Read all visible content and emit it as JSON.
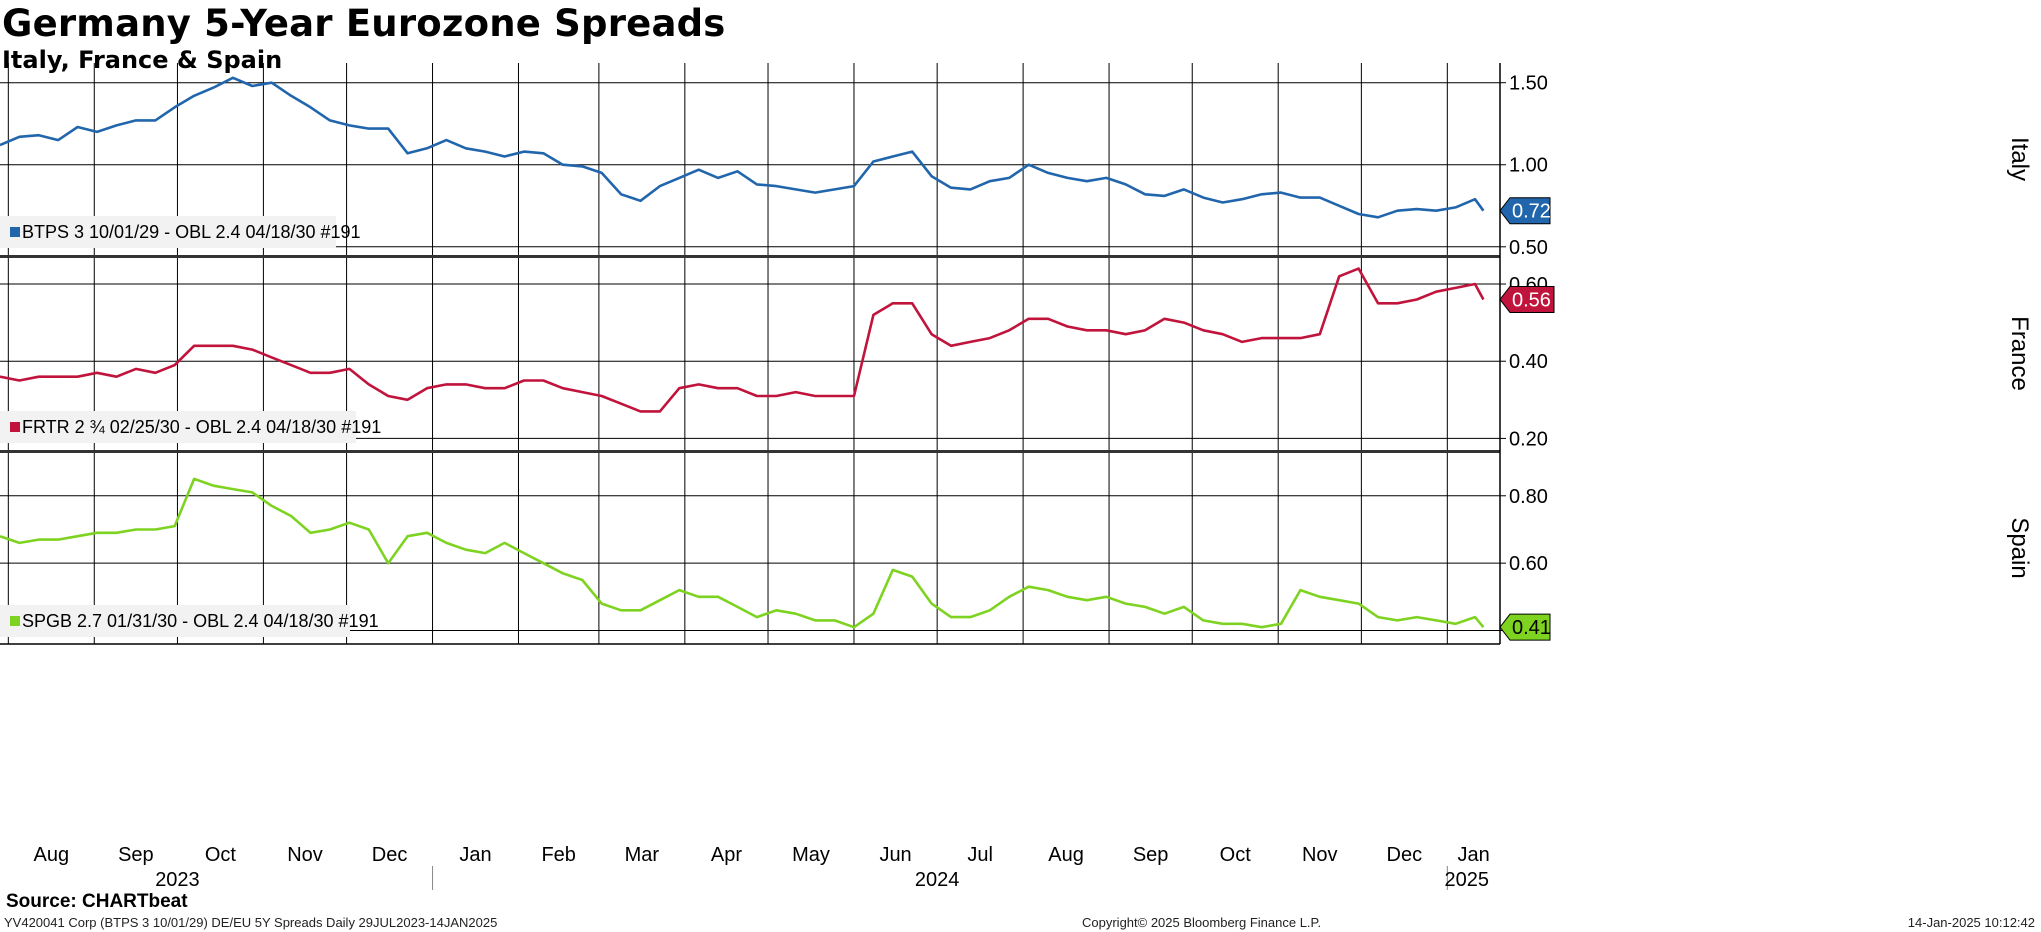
{
  "header": {
    "title": "Germany 5-Year Eurozone Spreads",
    "subtitle": "Italy, France & Spain"
  },
  "footer": {
    "source": "Source: CHARTbeat",
    "left": "YV420041 Corp (BTPS 3 10/01/29) DE/EU 5Y Spreads  Daily 29JUL2023-14JAN2025",
    "center": "Copyright© 2025 Bloomberg Finance L.P.",
    "right": "14-Jan-2025 10:12:42"
  },
  "colors": {
    "italy": "#2166ac",
    "france": "#c0143c",
    "spain": "#7ed321",
    "grid": "#000000"
  },
  "chart_data": [
    {
      "type": "line",
      "panel": "top",
      "axis_title": "Italy",
      "ylim": [
        0.45,
        1.62
      ],
      "yticks": [
        0.5,
        1.0,
        1.5
      ],
      "ytick_labels": [
        "0.50",
        "1.00",
        "1.50"
      ],
      "last_value_label": "0.72",
      "grid": true,
      "series": [
        {
          "name": "BTPS 3 10/01/29 - OBL 2.4 04/18/30 #191",
          "x": [
            "2023-07-29",
            "2023-08-05",
            "2023-08-12",
            "2023-08-19",
            "2023-08-26",
            "2023-09-02",
            "2023-09-09",
            "2023-09-16",
            "2023-09-23",
            "2023-09-30",
            "2023-10-07",
            "2023-10-14",
            "2023-10-21",
            "2023-10-28",
            "2023-11-04",
            "2023-11-11",
            "2023-11-18",
            "2023-11-25",
            "2023-12-02",
            "2023-12-09",
            "2023-12-16",
            "2023-12-23",
            "2023-12-30",
            "2024-01-06",
            "2024-01-13",
            "2024-01-20",
            "2024-01-27",
            "2024-02-03",
            "2024-02-10",
            "2024-02-17",
            "2024-02-24",
            "2024-03-02",
            "2024-03-09",
            "2024-03-16",
            "2024-03-23",
            "2024-03-30",
            "2024-04-06",
            "2024-04-13",
            "2024-04-20",
            "2024-04-27",
            "2024-05-04",
            "2024-05-11",
            "2024-05-18",
            "2024-05-25",
            "2024-06-01",
            "2024-06-08",
            "2024-06-15",
            "2024-06-22",
            "2024-06-29",
            "2024-07-06",
            "2024-07-13",
            "2024-07-20",
            "2024-07-27",
            "2024-08-03",
            "2024-08-10",
            "2024-08-17",
            "2024-08-24",
            "2024-08-31",
            "2024-09-07",
            "2024-09-14",
            "2024-09-21",
            "2024-09-28",
            "2024-10-05",
            "2024-10-12",
            "2024-10-19",
            "2024-10-26",
            "2024-11-02",
            "2024-11-09",
            "2024-11-16",
            "2024-11-23",
            "2024-11-30",
            "2024-12-07",
            "2024-12-14",
            "2024-12-21",
            "2024-12-28",
            "2025-01-04",
            "2025-01-11",
            "2025-01-14"
          ],
          "values": [
            1.12,
            1.17,
            1.18,
            1.15,
            1.23,
            1.2,
            1.24,
            1.27,
            1.27,
            1.35,
            1.42,
            1.47,
            1.53,
            1.48,
            1.5,
            1.42,
            1.35,
            1.27,
            1.24,
            1.22,
            1.22,
            1.07,
            1.1,
            1.15,
            1.1,
            1.08,
            1.05,
            1.08,
            1.07,
            1.0,
            0.99,
            0.95,
            0.82,
            0.78,
            0.87,
            0.92,
            0.97,
            0.92,
            0.96,
            0.88,
            0.87,
            0.85,
            0.83,
            0.85,
            0.87,
            1.02,
            1.05,
            1.08,
            0.93,
            0.86,
            0.85,
            0.9,
            0.92,
            1.0,
            0.95,
            0.92,
            0.9,
            0.92,
            0.88,
            0.82,
            0.81,
            0.85,
            0.8,
            0.77,
            0.79,
            0.82,
            0.83,
            0.8,
            0.8,
            0.75,
            0.7,
            0.68,
            0.72,
            0.73,
            0.72,
            0.74,
            0.79,
            0.72
          ]
        }
      ]
    },
    {
      "type": "line",
      "panel": "middle",
      "axis_title": "France",
      "ylim": [
        0.17,
        0.67
      ],
      "yticks": [
        0.2,
        0.4,
        0.6
      ],
      "ytick_labels": [
        "0.20",
        "0.40",
        "0.60"
      ],
      "last_value_label": "0.56",
      "grid": true,
      "series": [
        {
          "name": "FRTR 2 ¾ 02/25/30 - OBL 2.4 04/18/30 #191",
          "x": [
            "2023-07-29",
            "2023-08-05",
            "2023-08-12",
            "2023-08-19",
            "2023-08-26",
            "2023-09-02",
            "2023-09-09",
            "2023-09-16",
            "2023-09-23",
            "2023-09-30",
            "2023-10-07",
            "2023-10-14",
            "2023-10-21",
            "2023-10-28",
            "2023-11-04",
            "2023-11-11",
            "2023-11-18",
            "2023-11-25",
            "2023-12-02",
            "2023-12-09",
            "2023-12-16",
            "2023-12-23",
            "2023-12-30",
            "2024-01-06",
            "2024-01-13",
            "2024-01-20",
            "2024-01-27",
            "2024-02-03",
            "2024-02-10",
            "2024-02-17",
            "2024-02-24",
            "2024-03-02",
            "2024-03-09",
            "2024-03-16",
            "2024-03-23",
            "2024-03-30",
            "2024-04-06",
            "2024-04-13",
            "2024-04-20",
            "2024-04-27",
            "2024-05-04",
            "2024-05-11",
            "2024-05-18",
            "2024-05-25",
            "2024-06-01",
            "2024-06-08",
            "2024-06-15",
            "2024-06-22",
            "2024-06-29",
            "2024-07-06",
            "2024-07-13",
            "2024-07-20",
            "2024-07-27",
            "2024-08-03",
            "2024-08-10",
            "2024-08-17",
            "2024-08-24",
            "2024-08-31",
            "2024-09-07",
            "2024-09-14",
            "2024-09-21",
            "2024-09-28",
            "2024-10-05",
            "2024-10-12",
            "2024-10-19",
            "2024-10-26",
            "2024-11-02",
            "2024-11-09",
            "2024-11-16",
            "2024-11-23",
            "2024-11-30",
            "2024-12-07",
            "2024-12-14",
            "2024-12-21",
            "2024-12-28",
            "2025-01-04",
            "2025-01-11",
            "2025-01-14"
          ],
          "values": [
            0.36,
            0.35,
            0.36,
            0.36,
            0.36,
            0.37,
            0.36,
            0.38,
            0.37,
            0.39,
            0.44,
            0.44,
            0.44,
            0.43,
            0.41,
            0.39,
            0.37,
            0.37,
            0.38,
            0.34,
            0.31,
            0.3,
            0.33,
            0.34,
            0.34,
            0.33,
            0.33,
            0.35,
            0.35,
            0.33,
            0.32,
            0.31,
            0.29,
            0.27,
            0.27,
            0.33,
            0.34,
            0.33,
            0.33,
            0.31,
            0.31,
            0.32,
            0.31,
            0.31,
            0.31,
            0.52,
            0.55,
            0.55,
            0.47,
            0.44,
            0.45,
            0.46,
            0.48,
            0.51,
            0.51,
            0.49,
            0.48,
            0.48,
            0.47,
            0.48,
            0.51,
            0.5,
            0.48,
            0.47,
            0.45,
            0.46,
            0.46,
            0.46,
            0.47,
            0.62,
            0.64,
            0.55,
            0.55,
            0.56,
            0.58,
            0.59,
            0.6,
            0.56
          ]
        }
      ]
    },
    {
      "type": "line",
      "panel": "bottom",
      "axis_title": "Spain",
      "ylim": [
        0.36,
        0.93
      ],
      "yticks": [
        0.4,
        0.6,
        0.8
      ],
      "ytick_labels": [
        "0.40",
        "0.60",
        "0.80"
      ],
      "last_value_label": "0.41",
      "grid": true,
      "series": [
        {
          "name": "SPGB 2.7 01/31/30 - OBL 2.4 04/18/30 #191",
          "x": [
            "2023-07-29",
            "2023-08-05",
            "2023-08-12",
            "2023-08-19",
            "2023-08-26",
            "2023-09-02",
            "2023-09-09",
            "2023-09-16",
            "2023-09-23",
            "2023-09-30",
            "2023-10-07",
            "2023-10-14",
            "2023-10-21",
            "2023-10-28",
            "2023-11-04",
            "2023-11-11",
            "2023-11-18",
            "2023-11-25",
            "2023-12-02",
            "2023-12-09",
            "2023-12-16",
            "2023-12-23",
            "2023-12-30",
            "2024-01-06",
            "2024-01-13",
            "2024-01-20",
            "2024-01-27",
            "2024-02-03",
            "2024-02-10",
            "2024-02-17",
            "2024-02-24",
            "2024-03-02",
            "2024-03-09",
            "2024-03-16",
            "2024-03-23",
            "2024-03-30",
            "2024-04-06",
            "2024-04-13",
            "2024-04-20",
            "2024-04-27",
            "2024-05-04",
            "2024-05-11",
            "2024-05-18",
            "2024-05-25",
            "2024-06-01",
            "2024-06-08",
            "2024-06-15",
            "2024-06-22",
            "2024-06-29",
            "2024-07-06",
            "2024-07-13",
            "2024-07-20",
            "2024-07-27",
            "2024-08-03",
            "2024-08-10",
            "2024-08-17",
            "2024-08-24",
            "2024-08-31",
            "2024-09-07",
            "2024-09-14",
            "2024-09-21",
            "2024-09-28",
            "2024-10-05",
            "2024-10-12",
            "2024-10-19",
            "2024-10-26",
            "2024-11-02",
            "2024-11-09",
            "2024-11-16",
            "2024-11-23",
            "2024-11-30",
            "2024-12-07",
            "2024-12-14",
            "2024-12-21",
            "2024-12-28",
            "2025-01-04",
            "2025-01-11",
            "2025-01-14"
          ],
          "values": [
            0.68,
            0.66,
            0.67,
            0.67,
            0.68,
            0.69,
            0.69,
            0.7,
            0.7,
            0.71,
            0.85,
            0.83,
            0.82,
            0.81,
            0.77,
            0.74,
            0.69,
            0.7,
            0.72,
            0.7,
            0.6,
            0.68,
            0.69,
            0.66,
            0.64,
            0.63,
            0.66,
            0.63,
            0.6,
            0.57,
            0.55,
            0.48,
            0.46,
            0.46,
            0.49,
            0.52,
            0.5,
            0.5,
            0.47,
            0.44,
            0.46,
            0.45,
            0.43,
            0.43,
            0.41,
            0.45,
            0.58,
            0.56,
            0.48,
            0.44,
            0.44,
            0.46,
            0.5,
            0.53,
            0.52,
            0.5,
            0.49,
            0.5,
            0.48,
            0.47,
            0.45,
            0.47,
            0.43,
            0.42,
            0.42,
            0.41,
            0.42,
            0.52,
            0.5,
            0.49,
            0.48,
            0.44,
            0.43,
            0.44,
            0.43,
            0.42,
            0.44,
            0.41
          ]
        }
      ]
    }
  ],
  "x_axis": {
    "months": [
      {
        "label": "Aug",
        "start": "2023-08-01"
      },
      {
        "label": "Sep",
        "start": "2023-09-01"
      },
      {
        "label": "Oct",
        "start": "2023-10-01"
      },
      {
        "label": "Nov",
        "start": "2023-11-01"
      },
      {
        "label": "Dec",
        "start": "2023-12-01"
      },
      {
        "label": "Jan",
        "start": "2024-01-01"
      },
      {
        "label": "Feb",
        "start": "2024-02-01"
      },
      {
        "label": "Mar",
        "start": "2024-03-01"
      },
      {
        "label": "Apr",
        "start": "2024-04-01"
      },
      {
        "label": "May",
        "start": "2024-05-01"
      },
      {
        "label": "Jun",
        "start": "2024-06-01"
      },
      {
        "label": "Jul",
        "start": "2024-07-01"
      },
      {
        "label": "Aug",
        "start": "2024-08-01"
      },
      {
        "label": "Sep",
        "start": "2024-09-01"
      },
      {
        "label": "Oct",
        "start": "2024-10-01"
      },
      {
        "label": "Nov",
        "start": "2024-11-01"
      },
      {
        "label": "Dec",
        "start": "2024-12-01"
      },
      {
        "label": "Jan",
        "start": "2025-01-01"
      }
    ],
    "years": [
      {
        "label": "2023",
        "at": "2023-10-01"
      },
      {
        "label": "2024",
        "at": "2024-07-01"
      },
      {
        "label": "2025",
        "at": "2025-01-08"
      }
    ],
    "year_dividers": [
      "2024-01-01",
      "2025-01-01"
    ],
    "range": [
      "2023-07-29",
      "2025-01-20"
    ]
  }
}
